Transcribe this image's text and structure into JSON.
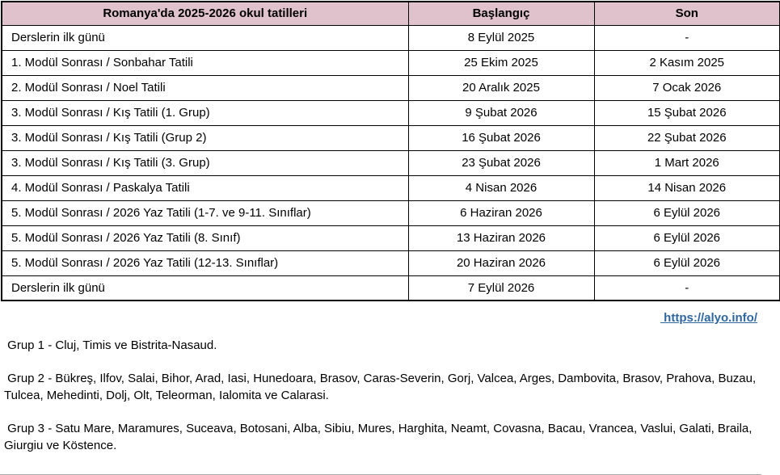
{
  "table": {
    "headers": [
      "Romanya'da 2025-2026 okul tatilleri",
      "Başlangıç",
      "Son"
    ],
    "rows": [
      [
        "Derslerin ilk günü",
        "8 Eylül 2025",
        "-"
      ],
      [
        "1. Modül Sonrası / Sonbahar Tatili",
        "25 Ekim 2025",
        "2 Kasım 2025"
      ],
      [
        "2. Modül Sonrası / Noel Tatili",
        "20 Aralık 2025",
        "7 Ocak 2026"
      ],
      [
        "3. Modül Sonrası / Kış Tatili (1. Grup)",
        "9 Şubat 2026",
        "15 Şubat 2026"
      ],
      [
        "3. Modül Sonrası / Kış Tatili (Grup 2)",
        "16 Şubat 2026",
        "22 Şubat 2026"
      ],
      [
        "3. Modül Sonrası / Kış Tatili (3. Grup)",
        "23 Şubat 2026",
        "1 Mart 2026"
      ],
      [
        "4. Modül Sonrası / Paskalya Tatili",
        "4 Nisan 2026",
        "14 Nisan 2026"
      ],
      [
        "5. Modül Sonrası / 2026 Yaz Tatili (1-7. ve 9-11. Sınıflar)",
        "6 Haziran 2026",
        "6 Eylül 2026"
      ],
      [
        "5. Modül Sonrası / 2026 Yaz Tatili (8. Sınıf)",
        "13 Haziran 2026",
        "6 Eylül 2026"
      ],
      [
        "5. Modül Sonrası / 2026 Yaz Tatili (12-13. Sınıflar)",
        "20 Haziran 2026",
        "6 Eylül 2026"
      ],
      [
        "Derslerin ilk günü",
        "7 Eylül 2026",
        "-"
      ]
    ]
  },
  "link": {
    "label": " https://alyo.info/"
  },
  "notes": [
    " Grup 1 - Cluj, Timis ve Bistrita-Nasaud.",
    " Grup 2 - Bükreş, Ilfov, Salai, Bihor, Arad, Iasi, Hunedoara, Brasov, Caras-Severin, Gorj, Valcea, Arges, Dambovita, Brasov, Prahova, Buzau, Tulcea, Mehedinti, Dolj, Olt, Teleorman, Ialomita ve Calarasi.",
    " Grup 3 - Satu Mare, Maramures, Suceava, Botosani, Alba, Sibiu, Mures, Harghita, Neamt, Covasna, Bacau, Vrancea, Vaslui, Galati, Braila, Giurgiu ve Köstence."
  ],
  "colors": {
    "header_bg": "#dfc2cb",
    "link": "#2f669f",
    "border": "#000000"
  }
}
